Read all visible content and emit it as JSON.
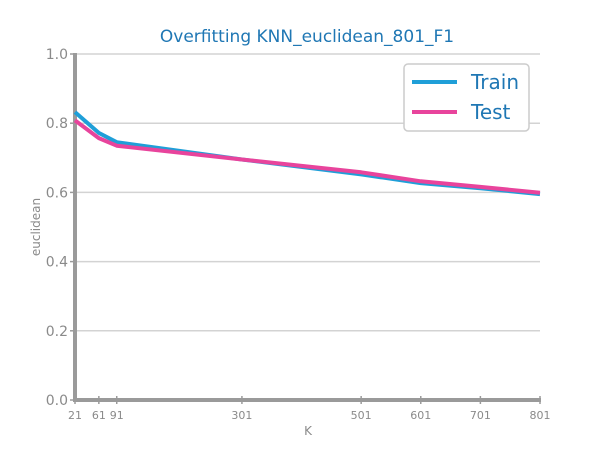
{
  "chart_data": {
    "type": "line",
    "title": "Overfitting KNN_euclidean_801_F1",
    "xlabel": "K",
    "ylabel": "euclidean",
    "x": [
      21,
      61,
      91,
      301,
      501,
      601,
      701,
      801
    ],
    "xticks": [
      21,
      61,
      91,
      301,
      501,
      601,
      701,
      801
    ],
    "xlim": [
      21,
      801
    ],
    "ylim": [
      0.0,
      1.0
    ],
    "yticks": [
      0.0,
      0.2,
      0.4,
      0.6,
      0.8,
      1.0
    ],
    "ytick_labels": [
      "0.0",
      "0.2",
      "0.4",
      "0.6",
      "0.8",
      "1.0"
    ],
    "grid": "horizontal",
    "legend_position": "top-right",
    "series": [
      {
        "name": "Train",
        "color": "#1f9fd8",
        "values": [
          0.832,
          0.772,
          0.745,
          0.695,
          0.652,
          0.627,
          0.612,
          0.595
        ]
      },
      {
        "name": "Test",
        "color": "#e8449c",
        "values": [
          0.808,
          0.757,
          0.735,
          0.695,
          0.658,
          0.632,
          0.616,
          0.599
        ]
      }
    ]
  }
}
